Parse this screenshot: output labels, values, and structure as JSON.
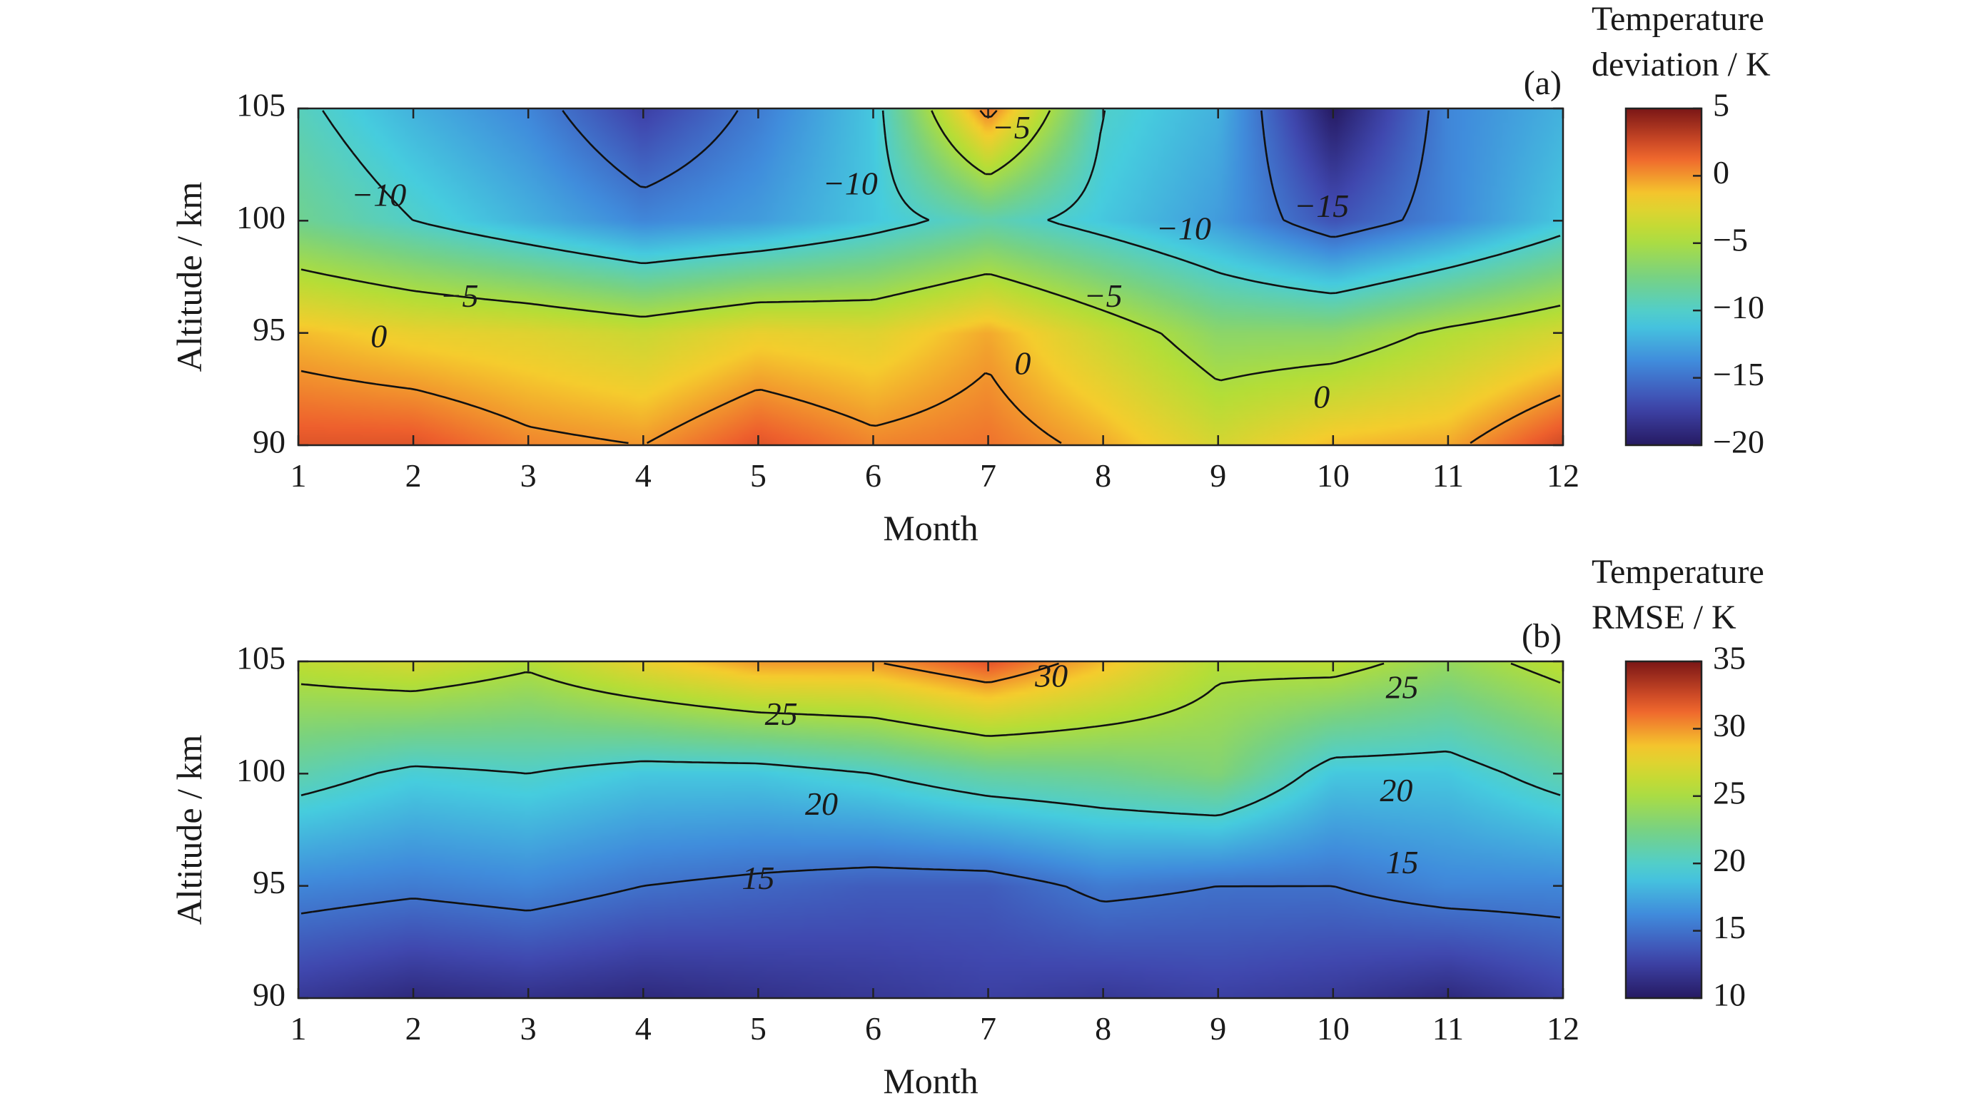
{
  "chart_data": [
    {
      "panel_label": "(a)",
      "type": "heatmap",
      "subtype": "filled-contour",
      "xlabel": "Month",
      "ylabel": "Altitude / km",
      "colorbar_title": [
        "Temperature",
        "deviation / K"
      ],
      "x": [
        1,
        2,
        3,
        4,
        5,
        6,
        7,
        8,
        9,
        10,
        11,
        12
      ],
      "y": [
        90,
        95,
        100,
        105
      ],
      "xlim": [
        1,
        12
      ],
      "ylim": [
        90,
        105
      ],
      "x_ticks": [
        1,
        2,
        3,
        4,
        5,
        6,
        7,
        8,
        9,
        10,
        11,
        12
      ],
      "y_ticks": [
        90,
        95,
        100,
        105
      ],
      "clim": [
        -20,
        5
      ],
      "colorbar_ticks": [
        5,
        0,
        -5,
        -10,
        -15,
        -20
      ],
      "colorbar_tick_labels": [
        "5",
        "0",
        "−5",
        "−10",
        "−15",
        "−20"
      ],
      "contour_levels": [
        -15,
        -10,
        -5,
        0
      ],
      "z": [
        [
          2.0,
          2.0,
          0.5,
          0.0,
          2.0,
          0.5,
          1.0,
          -0.5,
          -3.0,
          -1.0,
          -0.5,
          2.5
        ],
        [
          -1.0,
          -2.0,
          -2.5,
          -3.5,
          -2.0,
          -2.5,
          -0.5,
          -3.5,
          -6.5,
          -6.5,
          -4.5,
          -3.0
        ],
        [
          -8.0,
          -10.0,
          -12.0,
          -14.0,
          -13.0,
          -11.0,
          -9.0,
          -11.0,
          -13.0,
          -16.5,
          -14.0,
          -11.0
        ],
        [
          -9.5,
          -12.0,
          -14.0,
          -17.5,
          -14.5,
          -11.0,
          1.0,
          -10.0,
          -12.0,
          -20.0,
          -14.0,
          -12.0
        ]
      ],
      "contour_labels": [
        {
          "text": "−10",
          "x": 1.7,
          "y": 101.0
        },
        {
          "text": "−10",
          "x": 5.8,
          "y": 101.5
        },
        {
          "text": "−10",
          "x": 8.7,
          "y": 99.5
        },
        {
          "text": "−5",
          "x": 7.2,
          "y": 104.0
        },
        {
          "text": "−5",
          "x": 2.4,
          "y": 96.5
        },
        {
          "text": "−5",
          "x": 8.0,
          "y": 96.5
        },
        {
          "text": "−15",
          "x": 9.9,
          "y": 100.5
        },
        {
          "text": "0",
          "x": 1.7,
          "y": 94.7
        },
        {
          "text": "0",
          "x": 7.3,
          "y": 93.5
        },
        {
          "text": "0",
          "x": 9.9,
          "y": 92.0
        }
      ]
    },
    {
      "panel_label": "(b)",
      "type": "heatmap",
      "subtype": "filled-contour",
      "xlabel": "Month",
      "ylabel": "Altitude / km",
      "colorbar_title": [
        "Temperature",
        "RMSE / K"
      ],
      "x": [
        1,
        2,
        3,
        4,
        5,
        6,
        7,
        8,
        9,
        10,
        11,
        12
      ],
      "y": [
        90,
        95,
        100,
        105
      ],
      "xlim": [
        1,
        12
      ],
      "ylim": [
        90,
        105
      ],
      "x_ticks": [
        1,
        2,
        3,
        4,
        5,
        6,
        7,
        8,
        9,
        10,
        11,
        12
      ],
      "y_ticks": [
        90,
        95,
        100,
        105
      ],
      "clim": [
        10,
        35
      ],
      "colorbar_ticks": [
        35,
        30,
        25,
        20,
        15,
        10
      ],
      "colorbar_tick_labels": [
        "35",
        "30",
        "25",
        "20",
        "15",
        "10"
      ],
      "contour_levels": [
        15,
        20,
        25,
        30
      ],
      "z": [
        [
          12.0,
          11.0,
          11.5,
          11.0,
          11.5,
          12.0,
          12.5,
          12.0,
          12.5,
          12.0,
          11.0,
          12.5
        ],
        [
          16.0,
          15.5,
          16.0,
          15.0,
          14.5,
          14.0,
          14.0,
          15.5,
          15.0,
          15.0,
          16.0,
          16.0
        ],
        [
          21.0,
          19.5,
          20.0,
          19.0,
          19.0,
          20.0,
          21.5,
          22.0,
          23.0,
          19.0,
          19.0,
          21.0
        ],
        [
          26.0,
          27.0,
          25.5,
          28.0,
          30.0,
          30.0,
          32.0,
          29.0,
          25.5,
          26.0,
          24.0,
          26.0
        ]
      ],
      "contour_labels": [
        {
          "text": "30",
          "x": 7.55,
          "y": 104.2
        },
        {
          "text": "25",
          "x": 5.2,
          "y": 102.5
        },
        {
          "text": "25",
          "x": 10.6,
          "y": 103.7
        },
        {
          "text": "20",
          "x": 5.55,
          "y": 98.5
        },
        {
          "text": "20",
          "x": 10.55,
          "y": 99.1
        },
        {
          "text": "15",
          "x": 5.0,
          "y": 95.2
        },
        {
          "text": "15",
          "x": 10.6,
          "y": 95.9
        }
      ]
    }
  ]
}
